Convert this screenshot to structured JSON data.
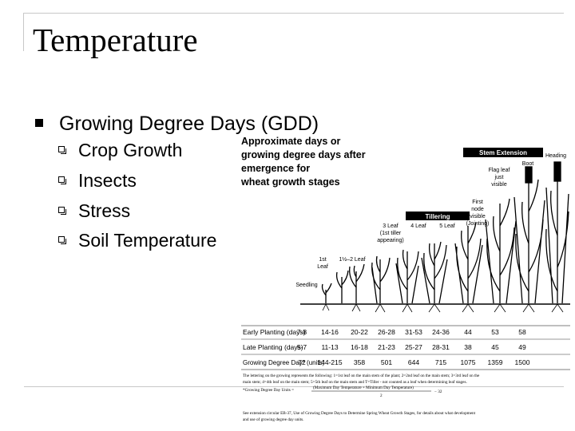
{
  "slide": {
    "title": "Temperature",
    "level1": {
      "text": "Growing Degree Days (GDD)"
    },
    "level2": [
      "Crop Growth",
      "Insects",
      "Stress",
      "Soil Temperature"
    ]
  },
  "figure": {
    "heading": [
      "Approximate days or",
      "growing degree days after",
      "emergence for",
      "wheat growth stages"
    ],
    "stage_bars": {
      "stem_extension": "Stem Extension",
      "tillering": "Tillering"
    },
    "stage_labels": {
      "heading": "Heading",
      "boot": "Boot",
      "flag_leaf": [
        "Flag leaf",
        "just",
        "visible"
      ],
      "first_node": [
        "First",
        "node",
        "visible",
        "(Jointing)"
      ],
      "three_leaf": [
        "3 Leaf",
        "(1st tiller",
        "appearing)"
      ],
      "four_leaf": "4 Leaf",
      "five_leaf": "5 Leaf",
      "one_leaf": [
        "1st",
        "Leaf"
      ],
      "one_half_two_leaf": "1½–2 Leaf",
      "seedling": "Seedling"
    },
    "table": {
      "rows": [
        {
          "label": "Early Planting (days)",
          "values": [
            "7-8",
            "14-16",
            "20-22",
            "26-28",
            "31-53",
            "24-36",
            "44",
            "53",
            "58"
          ]
        },
        {
          "label": "Late Planting (days)",
          "values": [
            "5-7",
            "11-13",
            "16-18",
            "21-23",
            "25-27",
            "28-31",
            "38",
            "45",
            "49"
          ]
        },
        {
          "label": "Growing Degree Day* (units)",
          "values": [
            "72",
            "144-215",
            "358",
            "501",
            "644",
            "715",
            "1075",
            "1359",
            "1500"
          ]
        }
      ]
    },
    "footnotes": [
      "The lettering on the growing represents the following: 1=1st leaf on the main stem of the plant; 2=2nd leaf on the main stem; 3=3rd leaf on the",
      "main stem; 4=4th leaf on the main stem; 5=5th leaf on the main stem and T=Tiller - not counted as a leaf when determining leaf stages.",
      "*Growing Degree Day Units =",
      "(Maximum Day Temperature + Minimum Day Temperature)",
      "2",
      "− 32",
      "See extension circular EB-37, Use of Growing Degree Days to Determine Spring Wheat Growth Stages, for details about what development",
      "and use of growing degree day units."
    ]
  }
}
